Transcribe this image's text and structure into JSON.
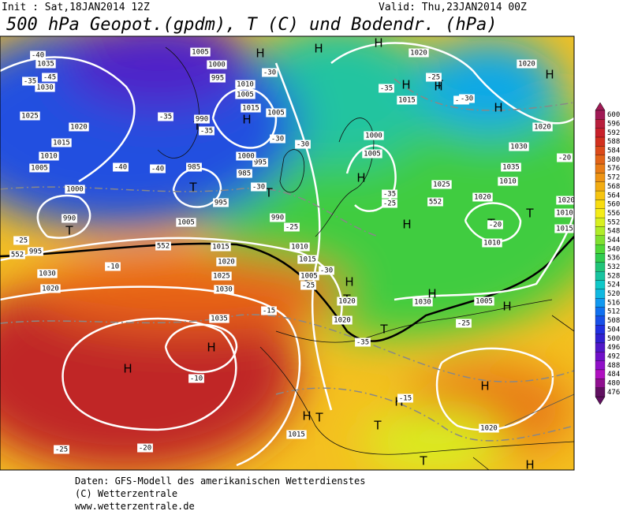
{
  "header": {
    "init": "Init : Sat,18JAN2014 12Z",
    "valid": "Valid: Thu,23JAN2014 00Z",
    "title": "500 hPa Geopot.(gpdm), T (C) und Bodendr. (hPa)"
  },
  "legend": {
    "levels": [
      600,
      596,
      592,
      588,
      584,
      580,
      576,
      572,
      568,
      564,
      560,
      556,
      552,
      548,
      544,
      540,
      536,
      532,
      528,
      524,
      520,
      516,
      512,
      508,
      504,
      500,
      496,
      492,
      488,
      484,
      480,
      476
    ],
    "colors": [
      "#a01a55",
      "#b81e3c",
      "#c8202a",
      "#d2301e",
      "#dc4a1a",
      "#e26418",
      "#e87c16",
      "#ee9414",
      "#f2ac12",
      "#f6c410",
      "#f8dc10",
      "#f4ec18",
      "#d8f020",
      "#b0ec28",
      "#80e030",
      "#50d838",
      "#30cc50",
      "#20c478",
      "#18c4a0",
      "#10c8c8",
      "#10b8e0",
      "#1098f0",
      "#1070f0",
      "#1850e8",
      "#2030e0",
      "#3020d0",
      "#5018c8",
      "#7010c8",
      "#9010c8",
      "#b010c0",
      "#901090",
      "#601060"
    ]
  },
  "map": {
    "systems": [
      "H",
      "H",
      "H",
      "H",
      "H",
      "H",
      "H",
      "H",
      "H",
      "H",
      "H",
      "H",
      "H",
      "H",
      "H",
      "H",
      "H",
      "H",
      "H",
      "T",
      "T",
      "T",
      "T",
      "T",
      "T",
      "T",
      "T",
      "T",
      "T",
      "T",
      "T"
    ],
    "labels": [
      1035,
      1030,
      1025,
      1020,
      1015,
      1010,
      1005,
      1000,
      990,
      995,
      1005,
      1000,
      995,
      1010,
      1005,
      1015,
      1005,
      990,
      985,
      995,
      1000,
      985,
      995,
      990,
      1005,
      1010,
      1015,
      1020,
      1025,
      1030,
      1035,
      1000,
      1005,
      1025,
      1020,
      1015,
      1020,
      1010,
      1015,
      1020,
      1030,
      1020,
      1035,
      1030,
      1020,
      1015,
      1005,
      1020,
      1020,
      1030,
      1010,
      1005,
      1010,
      1015,
      1020,
      1020,
      1015,
      -40,
      -45,
      -35,
      -40,
      -40,
      -35,
      -35,
      -30,
      -30,
      -30,
      -35,
      -35,
      -30,
      -35,
      -25,
      -25,
      -30,
      -25,
      -25,
      -20,
      -20,
      -15,
      -15,
      -10,
      -10,
      -25,
      -20,
      -25,
      -35,
      -25,
      -30,
      552,
      552,
      552
    ]
  },
  "footer": {
    "source": "Daten: GFS-Modell des amerikanischen Wetterdienstes",
    "copyright": "(C) Wetterzentrale",
    "url": "www.wetterzentrale.de"
  }
}
